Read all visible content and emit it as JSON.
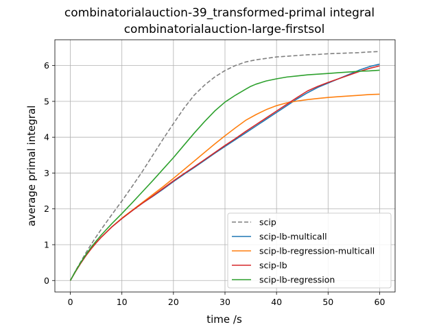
{
  "chart_data": {
    "type": "line",
    "title": "combinatorialauction-39_transformed-primal integral",
    "subtitle": "combinatorialauction-large-firstsol",
    "xlabel": "time /s",
    "ylabel": "average primal integral",
    "xlim": [
      -3,
      63
    ],
    "ylim": [
      -0.32,
      6.72
    ],
    "xticks": [
      0,
      10,
      20,
      30,
      40,
      50,
      60
    ],
    "yticks": [
      0,
      1,
      2,
      3,
      4,
      5,
      6
    ],
    "grid": true,
    "legend_position": "lower-right",
    "series": [
      {
        "name": "scip",
        "color": "#7f7f7f",
        "dash": "dashed",
        "x": [
          0,
          1,
          2,
          3,
          4,
          5,
          6,
          8,
          10,
          12,
          14,
          16,
          18,
          20,
          22,
          24,
          26,
          28,
          30,
          32,
          34,
          35,
          36,
          38,
          40,
          42,
          44,
          46,
          48,
          50,
          52,
          54,
          56,
          58,
          60
        ],
        "y": [
          0.0,
          0.27,
          0.52,
          0.77,
          1.0,
          1.22,
          1.43,
          1.83,
          2.22,
          2.63,
          3.05,
          3.5,
          3.95,
          4.38,
          4.8,
          5.17,
          5.45,
          5.68,
          5.86,
          6.0,
          6.1,
          6.13,
          6.16,
          6.2,
          6.24,
          6.26,
          6.28,
          6.3,
          6.31,
          6.33,
          6.34,
          6.35,
          6.36,
          6.38,
          6.39
        ]
      },
      {
        "name": "scip-lb-multicall",
        "color": "#1f77b4",
        "dash": "solid",
        "x": [
          0,
          1,
          2,
          3,
          4,
          5,
          6,
          8,
          10,
          12,
          14,
          16,
          18,
          20,
          22,
          24,
          26,
          28,
          30,
          32,
          34,
          36,
          38,
          40,
          42,
          44,
          46,
          48,
          50,
          52,
          54,
          56,
          58,
          60
        ],
        "y": [
          0.0,
          0.25,
          0.48,
          0.69,
          0.88,
          1.05,
          1.21,
          1.49,
          1.73,
          1.95,
          2.16,
          2.35,
          2.55,
          2.76,
          2.96,
          3.15,
          3.35,
          3.55,
          3.74,
          3.93,
          4.12,
          4.31,
          4.5,
          4.69,
          4.88,
          5.07,
          5.24,
          5.39,
          5.51,
          5.63,
          5.75,
          5.87,
          5.97,
          6.04
        ]
      },
      {
        "name": "scip-lb-regression-multicall",
        "color": "#ff7f0e",
        "dash": "solid",
        "x": [
          0,
          1,
          2,
          3,
          4,
          5,
          6,
          8,
          10,
          12,
          14,
          16,
          18,
          20,
          22,
          24,
          26,
          28,
          30,
          32,
          34,
          36,
          38,
          40,
          42,
          44,
          46,
          48,
          50,
          52,
          54,
          56,
          58,
          60
        ],
        "y": [
          0.0,
          0.25,
          0.48,
          0.69,
          0.88,
          1.05,
          1.21,
          1.49,
          1.74,
          1.96,
          2.18,
          2.4,
          2.62,
          2.85,
          3.09,
          3.33,
          3.57,
          3.81,
          4.04,
          4.26,
          4.47,
          4.63,
          4.77,
          4.88,
          4.96,
          5.01,
          5.05,
          5.08,
          5.11,
          5.13,
          5.15,
          5.17,
          5.19,
          5.2
        ]
      },
      {
        "name": "scip-lb",
        "color": "#d62728",
        "dash": "solid",
        "x": [
          0,
          1,
          2,
          3,
          4,
          5,
          6,
          8,
          10,
          12,
          14,
          16,
          18,
          20,
          22,
          24,
          26,
          28,
          30,
          32,
          34,
          36,
          38,
          40,
          42,
          44,
          46,
          48,
          50,
          52,
          54,
          56,
          58,
          60
        ],
        "y": [
          0.0,
          0.25,
          0.48,
          0.69,
          0.88,
          1.05,
          1.21,
          1.49,
          1.73,
          1.95,
          2.16,
          2.36,
          2.57,
          2.78,
          2.98,
          3.17,
          3.37,
          3.57,
          3.77,
          3.96,
          4.16,
          4.35,
          4.54,
          4.73,
          4.92,
          5.11,
          5.29,
          5.42,
          5.53,
          5.63,
          5.73,
          5.83,
          5.92,
          5.99
        ]
      },
      {
        "name": "scip-lb-regression",
        "color": "#2ca02c",
        "dash": "solid",
        "x": [
          0,
          1,
          2,
          3,
          4,
          5,
          6,
          8,
          10,
          12,
          14,
          16,
          18,
          20,
          22,
          24,
          26,
          28,
          30,
          32,
          34,
          35,
          36,
          38,
          40,
          42,
          44,
          46,
          48,
          50,
          52,
          54,
          56,
          58,
          60
        ],
        "y": [
          0.0,
          0.26,
          0.5,
          0.72,
          0.92,
          1.1,
          1.27,
          1.58,
          1.87,
          2.17,
          2.48,
          2.79,
          3.11,
          3.43,
          3.77,
          4.11,
          4.43,
          4.73,
          4.98,
          5.17,
          5.34,
          5.42,
          5.48,
          5.57,
          5.63,
          5.68,
          5.71,
          5.74,
          5.76,
          5.78,
          5.8,
          5.82,
          5.84,
          5.85,
          5.87
        ]
      }
    ]
  }
}
